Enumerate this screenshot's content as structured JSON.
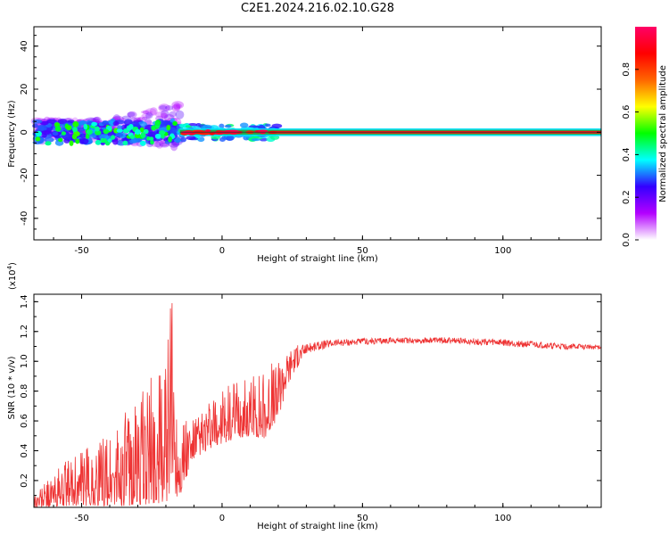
{
  "figure": {
    "title": "C2E1.2024.216.02.10.G28"
  },
  "chart_data": [
    {
      "type": "heatmap",
      "xlabel": "Height of straight line (km)",
      "ylabel": "Frequency (Hz)",
      "xlim": [
        -67,
        135
      ],
      "ylim": [
        -50,
        49
      ],
      "xticks": [
        -50,
        0,
        50,
        100
      ],
      "yticks": [
        -40,
        -20,
        0,
        20,
        40
      ],
      "colorbar": {
        "label": "Normalized spectral amplitude",
        "range": [
          0,
          1
        ],
        "ticks": [
          "0.0",
          "0.2",
          "0.4",
          "0.6",
          "0.8"
        ],
        "colors": [
          "#ffffff",
          "#b300ff",
          "#3300ff",
          "#00ffff",
          "#00ff00",
          "#ffff00",
          "#ff6600",
          "#ff0000",
          "#ff0066"
        ]
      },
      "regions": [
        {
          "x_range": [
            -67,
            -15
          ],
          "freq_spread_hz": [
            -8,
            17
          ],
          "amplitude": "0.3-0.5, scattered"
        },
        {
          "x_range": [
            -15,
            20
          ],
          "freq_spread_hz": [
            -5,
            5
          ],
          "amplitude": "0.5-1.0"
        },
        {
          "x_range": [
            20,
            135
          ],
          "freq_spread_hz": [
            -2,
            2
          ],
          "amplitude": "0.9-1.0, narrow band at 0 Hz"
        }
      ]
    },
    {
      "type": "line",
      "xlabel": "Height of straight line (km)",
      "ylabel": "SNR (10 * v/v)",
      "scale_label": "(x10",
      "scale_exp": "4",
      "scale_close": ")",
      "xlim": [
        -67,
        135
      ],
      "ylim": [
        0.02,
        1.45
      ],
      "xticks": [
        -50,
        0,
        50,
        100
      ],
      "yticks": [
        "0.2",
        "0.4",
        "0.6",
        "0.8",
        "1.0",
        "1.2",
        "1.4"
      ],
      "series": [
        {
          "color": "#ee3333",
          "envelope": [
            {
              "x": -67,
              "low": 0.02,
              "high": 0.12
            },
            {
              "x": -55,
              "low": 0.03,
              "high": 0.35
            },
            {
              "x": -45,
              "low": 0.03,
              "high": 0.45
            },
            {
              "x": -35,
              "low": 0.03,
              "high": 0.65
            },
            {
              "x": -25,
              "low": 0.04,
              "high": 0.9
            },
            {
              "x": -20,
              "low": 0.05,
              "high": 1.0
            },
            {
              "x": -18,
              "low": 0.08,
              "high": 1.44
            },
            {
              "x": -15,
              "low": 0.1,
              "high": 0.7
            },
            {
              "x": -10,
              "low": 0.35,
              "high": 0.62
            },
            {
              "x": 0,
              "low": 0.45,
              "high": 0.82
            },
            {
              "x": 10,
              "low": 0.5,
              "high": 0.9
            },
            {
              "x": 15,
              "low": 0.48,
              "high": 1.0
            },
            {
              "x": 20,
              "low": 0.62,
              "high": 1.0
            },
            {
              "x": 25,
              "low": 0.9,
              "high": 1.1
            },
            {
              "x": 30,
              "low": 1.05,
              "high": 1.12
            },
            {
              "x": 40,
              "low": 1.1,
              "high": 1.15
            },
            {
              "x": 60,
              "low": 1.12,
              "high": 1.16
            },
            {
              "x": 80,
              "low": 1.12,
              "high": 1.16
            },
            {
              "x": 100,
              "low": 1.1,
              "high": 1.15
            },
            {
              "x": 120,
              "low": 1.08,
              "high": 1.12
            },
            {
              "x": 135,
              "low": 1.08,
              "high": 1.11
            }
          ]
        }
      ]
    }
  ]
}
